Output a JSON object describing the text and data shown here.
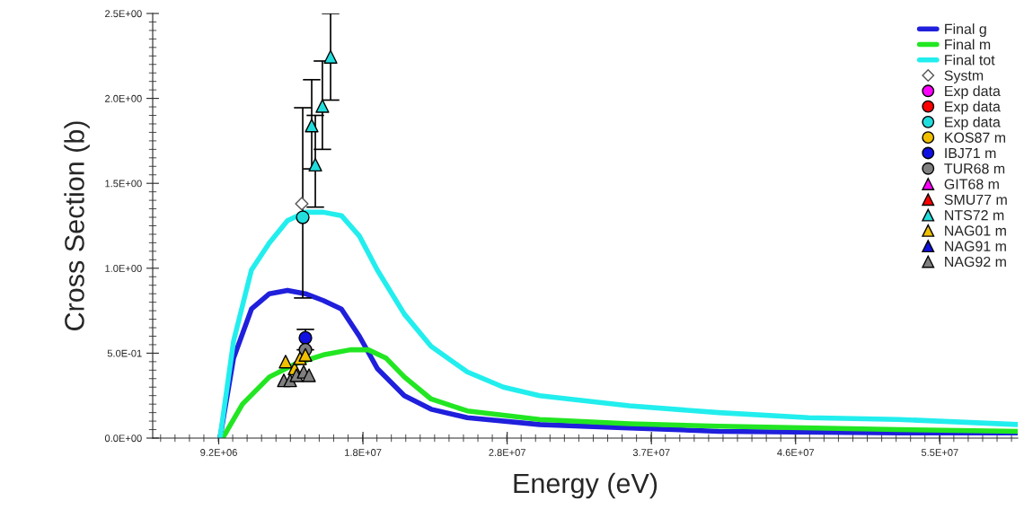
{
  "chart_data": {
    "type": "line",
    "xlabel": "Energy (eV)",
    "ylabel": "Cross Section (b)",
    "xlim": [
      5000000,
      60000000
    ],
    "xticks": [
      {
        "value": 9200000,
        "label": "9.2E+06"
      },
      {
        "value": 18370000,
        "label": "1.8E+07"
      },
      {
        "value": 27540000,
        "label": "2.8E+07"
      },
      {
        "value": 36710000,
        "label": "3.7E+07"
      },
      {
        "value": 45880000,
        "label": "4.6E+07"
      },
      {
        "value": 55050000,
        "label": "5.5E+07"
      }
    ],
    "ylim": [
      0,
      2.5
    ],
    "yticks": [
      {
        "value": 0,
        "label": "0.0E+00"
      },
      {
        "value": 0.5,
        "label": "5.0E-01"
      },
      {
        "value": 1.0,
        "label": "1.0E+00"
      },
      {
        "value": 1.5,
        "label": "1.5E+00"
      },
      {
        "value": 2.0,
        "label": "2.0E+00"
      },
      {
        "value": 2.5,
        "label": "2.5E+00"
      }
    ],
    "grid": false,
    "legend": "top right",
    "series": [
      {
        "name": "Final g",
        "color": "#1f1fdc",
        "x": [
          9280000,
          10140000,
          11280000,
          12420000,
          13570000,
          14710000,
          15850000,
          17000000,
          18140000,
          19280000,
          21000000,
          22700000,
          25000000,
          29600000,
          35300000,
          41000000,
          52400000,
          60000000
        ],
        "values": [
          0,
          0.47,
          0.76,
          0.85,
          0.87,
          0.85,
          0.81,
          0.76,
          0.6,
          0.41,
          0.25,
          0.17,
          0.12,
          0.08,
          0.06,
          0.04,
          0.03,
          0.03
        ]
      },
      {
        "name": "Final m",
        "color": "#22e622",
        "x": [
          9450000,
          10710000,
          12420000,
          14140000,
          15850000,
          17570000,
          18710000,
          19850000,
          21000000,
          22700000,
          25000000,
          29600000,
          35300000,
          41000000,
          52400000,
          60000000
        ],
        "values": [
          0,
          0.2,
          0.36,
          0.44,
          0.49,
          0.52,
          0.52,
          0.47,
          0.36,
          0.23,
          0.16,
          0.11,
          0.085,
          0.07,
          0.05,
          0.04
        ]
      },
      {
        "name": "Final tot",
        "color": "#22eeee",
        "x": [
          9280000,
          10140000,
          11280000,
          12420000,
          13570000,
          14710000,
          15850000,
          17000000,
          18140000,
          19280000,
          21000000,
          22700000,
          25000000,
          27300000,
          29600000,
          35300000,
          41000000,
          46700000,
          52400000,
          60000000
        ],
        "values": [
          0,
          0.57,
          0.99,
          1.15,
          1.28,
          1.33,
          1.33,
          1.31,
          1.19,
          0.99,
          0.73,
          0.54,
          0.39,
          0.3,
          0.25,
          0.19,
          0.15,
          0.12,
          0.11,
          0.08
        ]
      },
      {
        "name": "Systm",
        "type": "scatter",
        "marker": "diamond",
        "color": "#ffffff",
        "x": [
          14480000
        ],
        "values": [
          1.38
        ]
      },
      {
        "name": "Exp data",
        "type": "scatter",
        "marker": "circle",
        "color": "#ff00ff"
      },
      {
        "name": "Exp data",
        "type": "scatter",
        "marker": "circle",
        "color": "#ff0000"
      },
      {
        "name": "Exp data",
        "type": "scatter",
        "marker": "circle",
        "color": "#22dddd",
        "x": [
          14540000
        ],
        "values": [
          1.3
        ],
        "errors": [
          [
            0.825,
            1.945
          ]
        ]
      },
      {
        "name": "KOS87 m",
        "type": "scatter",
        "marker": "circle",
        "color": "#f0c000"
      },
      {
        "name": "IBJ71 m",
        "type": "scatter",
        "marker": "circle",
        "color": "#1010e0",
        "x": [
          14710000
        ],
        "values": [
          0.59
        ],
        "errors": [
          [
            0.52,
            0.64
          ]
        ]
      },
      {
        "name": "TUR68 m",
        "type": "scatter",
        "marker": "circle",
        "color": "#808080",
        "x": [
          14710000
        ],
        "values": [
          0.52
        ]
      },
      {
        "name": "GIT68 m",
        "type": "scatter",
        "marker": "triangle",
        "color": "#ff00ff"
      },
      {
        "name": "SMU77 m",
        "type": "scatter",
        "marker": "triangle",
        "color": "#ff0000"
      },
      {
        "name": "NTS72 m",
        "type": "scatter",
        "marker": "triangle",
        "color": "#22dddd",
        "x": [
          15110000,
          15340000,
          15790000,
          16310000
        ],
        "values": [
          1.84,
          1.61,
          1.955,
          2.245
        ],
        "errors": [
          [
            1.585,
            2.11
          ],
          [
            1.36,
            1.9
          ],
          [
            1.7,
            2.22
          ],
          [
            1.99,
            2.5
          ]
        ]
      },
      {
        "name": "NAG01 m",
        "type": "scatter",
        "marker": "triangle",
        "color": "#f0c000",
        "x": [
          13450000,
          14020000,
          14370000,
          14710000
        ],
        "values": [
          0.45,
          0.41,
          0.47,
          0.49
        ]
      },
      {
        "name": "NAG91 m",
        "type": "scatter",
        "marker": "triangle",
        "color": "#1010e0"
      },
      {
        "name": "NAG92 m",
        "type": "scatter",
        "marker": "triangle",
        "color": "#808080",
        "x": [
          13340000,
          13740000,
          14140000,
          14600000,
          14940000
        ],
        "values": [
          0.34,
          0.34,
          0.37,
          0.39,
          0.37
        ]
      }
    ]
  }
}
